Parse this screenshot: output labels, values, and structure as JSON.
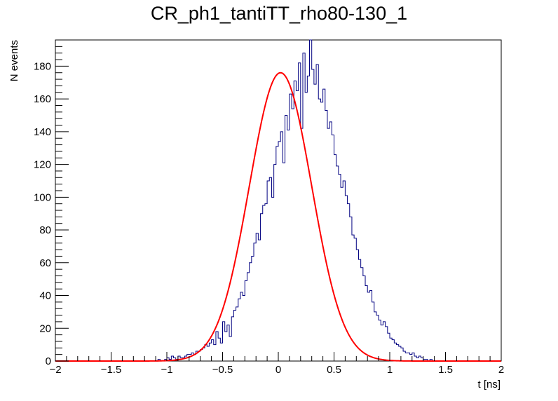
{
  "chart_data": {
    "type": "histogram",
    "title": "CR_ph1_tantiTT_rho80-130_1",
    "xlabel": "t [ns]",
    "ylabel": "N events",
    "xlim": [
      -2,
      2
    ],
    "ylim": [
      0,
      196
    ],
    "x_ticks": [
      -2,
      -1.5,
      -1,
      -0.5,
      0,
      0.5,
      1,
      1.5,
      2
    ],
    "x_tick_labels": [
      "−2",
      "−1.5",
      "−1",
      "−0.5",
      "0",
      "0.5",
      "1",
      "1.5",
      "2"
    ],
    "y_ticks": [
      0,
      20,
      40,
      60,
      80,
      100,
      120,
      140,
      160,
      180
    ],
    "y_tick_labels": [
      "0",
      "20",
      "40",
      "60",
      "80",
      "100",
      "120",
      "140",
      "160",
      "180"
    ],
    "bin_width": 0.02,
    "histogram_x_start": -1.1,
    "series": [
      {
        "name": "histogram",
        "color": "#000080",
        "values": [
          0,
          1,
          0,
          0,
          1,
          2,
          1,
          3,
          2,
          1,
          3,
          2,
          2,
          3,
          4,
          4,
          5,
          4,
          6,
          6,
          7,
          8,
          10,
          9,
          11,
          13,
          10,
          18,
          14,
          11,
          24,
          18,
          22,
          15,
          27,
          31,
          33,
          38,
          42,
          40,
          49,
          54,
          60,
          64,
          72,
          78,
          74,
          90,
          95,
          96,
          110,
          112,
          100,
          120,
          131,
          134,
          140,
          121,
          150,
          141,
          163,
          154,
          171,
          165,
          182,
          142,
          188,
          164,
          174,
          196,
          178,
          169,
          181,
          160,
          158,
          166,
          153,
          142,
          146,
          138,
          126,
          119,
          114,
          106,
          110,
          101,
          96,
          88,
          77,
          75,
          68,
          62,
          57,
          52,
          46,
          42,
          43,
          36,
          30,
          28,
          25,
          22,
          24,
          21,
          17,
          14,
          13,
          11,
          10,
          9,
          8,
          6,
          5,
          5,
          4,
          5,
          3,
          2,
          3,
          2,
          1,
          1,
          0,
          1,
          0,
          0
        ]
      },
      {
        "name": "gaussian-fit",
        "color": "#ff0000",
        "amplitude": 176,
        "mean": 0.02,
        "sigma": 0.28
      }
    ]
  }
}
